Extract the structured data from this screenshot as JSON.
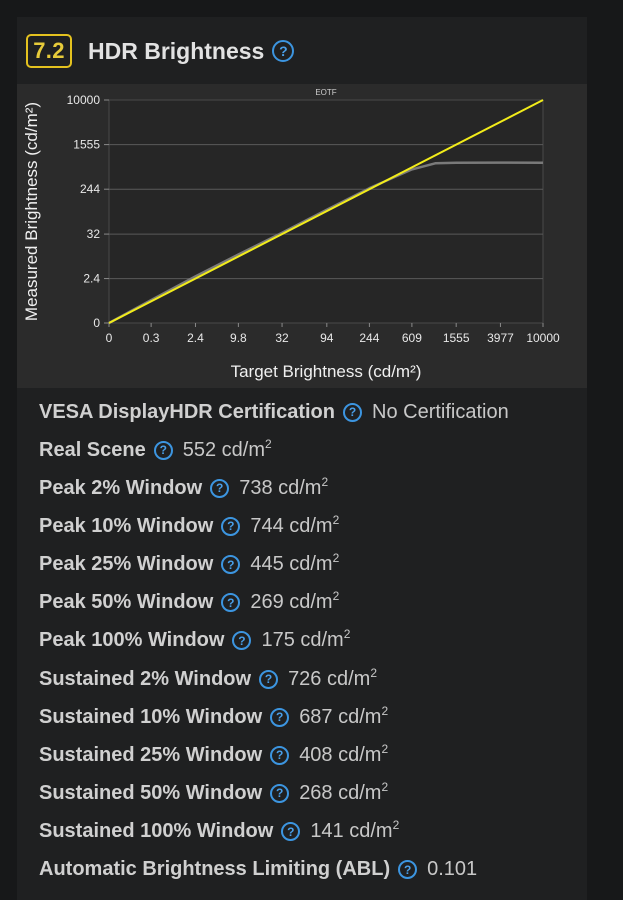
{
  "header": {
    "score": "7.2",
    "title": "HDR Brightness"
  },
  "chart_data": {
    "type": "line",
    "title": "EOTF",
    "xlabel": "Target Brightness (cd/m²)",
    "ylabel": "Measured Brightness (cd/m²)",
    "x_ticks": [
      "0",
      "0.3",
      "2.4",
      "9.8",
      "32",
      "94",
      "244",
      "609",
      "1555",
      "3977",
      "10000"
    ],
    "y_ticks": [
      "10000",
      "1555",
      "244",
      "32",
      "2.4",
      "0"
    ],
    "scale": "PQ",
    "grid": true,
    "series": [
      {
        "color": "#7a7a7a",
        "x": [
          0,
          0.3,
          2.4,
          9.8,
          32,
          94,
          244,
          609,
          1000,
          1555,
          3977,
          10000
        ],
        "y": [
          0,
          0.35,
          2.8,
          11,
          34,
          100,
          255,
          560,
          720,
          740,
          742,
          735
        ]
      },
      {
        "color": "#f2ec1a",
        "x": [
          0,
          10000
        ],
        "y": [
          0,
          10000
        ]
      }
    ]
  },
  "metrics": [
    {
      "label": "VESA DisplayHDR Certification",
      "value": "No Certification",
      "unit": ""
    },
    {
      "label": "Real Scene",
      "value": "552 cd/m",
      "unit": "2"
    },
    {
      "label": "Peak 2% Window",
      "value": "738 cd/m",
      "unit": "2"
    },
    {
      "label": "Peak 10% Window",
      "value": "744 cd/m",
      "unit": "2"
    },
    {
      "label": "Peak 25% Window",
      "value": "445 cd/m",
      "unit": "2"
    },
    {
      "label": "Peak 50% Window",
      "value": "269 cd/m",
      "unit": "2"
    },
    {
      "label": "Peak 100% Window",
      "value": "175 cd/m",
      "unit": "2"
    },
    {
      "label": "Sustained 2% Window",
      "value": "726 cd/m",
      "unit": "2"
    },
    {
      "label": "Sustained 10% Window",
      "value": "687 cd/m",
      "unit": "2"
    },
    {
      "label": "Sustained 25% Window",
      "value": "408 cd/m",
      "unit": "2"
    },
    {
      "label": "Sustained 50% Window",
      "value": "268 cd/m",
      "unit": "2"
    },
    {
      "label": "Sustained 100% Window",
      "value": "141 cd/m",
      "unit": "2"
    },
    {
      "label": "Automatic Brightness Limiting (ABL)",
      "value": "0.101",
      "unit": ""
    }
  ],
  "help_glyph": "?",
  "colors": {
    "accent": "#e4c21f",
    "help": "#3c95e0",
    "target_line": "#f2ec1a",
    "measured_line": "#7a7a7a"
  }
}
